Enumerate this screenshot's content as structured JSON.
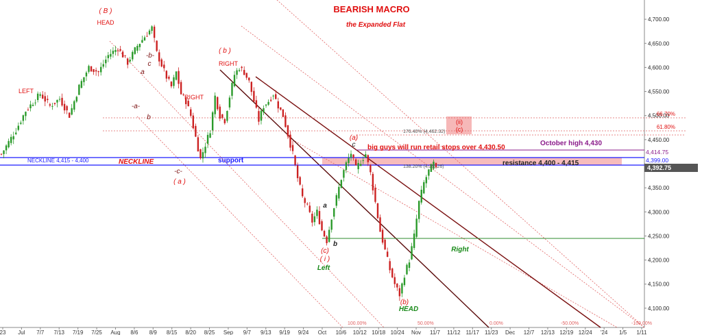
{
  "chart_data": {
    "type": "candlestick",
    "title": "BEARISH MACRO",
    "subtitle": "the Expanded Flat",
    "x_ticks": [
      "23",
      "Jul",
      "7/7",
      "7/13",
      "7/19",
      "7/25",
      "Aug",
      "8/6",
      "8/9",
      "8/15",
      "8/20",
      "8/25",
      "Sep",
      "9/7",
      "9/13",
      "9/19",
      "9/24",
      "Oct",
      "10/6",
      "10/12",
      "10/18",
      "10/24",
      "Nov",
      "11/7",
      "11/12",
      "11/17",
      "11/23",
      "Dec",
      "12/7",
      "12/13",
      "12/19",
      "12/24",
      "'24",
      "1/5",
      "1/11"
    ],
    "y_ticks": [
      "4,100.00",
      "4,150.00",
      "4,200.00",
      "4,250.00",
      "4,300.00",
      "4,350.00",
      "4,400.00",
      "4,450.00",
      "4,500.00",
      "4,550.00",
      "4,600.00",
      "4,650.00",
      "4,700.00"
    ],
    "ylim": [
      4060,
      4740
    ],
    "last_price": "4,392.75",
    "price_path": [
      [
        0,
        4420
      ],
      [
        6,
        4470
      ],
      [
        10,
        4510
      ],
      [
        16,
        4545
      ],
      [
        20,
        4520
      ],
      [
        24,
        4535
      ],
      [
        28,
        4500
      ],
      [
        32,
        4560
      ],
      [
        36,
        4600
      ],
      [
        40,
        4590
      ],
      [
        44,
        4625
      ],
      [
        48,
        4640
      ],
      [
        52,
        4610
      ],
      [
        56,
        4645
      ],
      [
        60,
        4670
      ],
      [
        62,
        4682
      ],
      [
        64,
        4630
      ],
      [
        66,
        4605
      ],
      [
        68,
        4580
      ],
      [
        70,
        4560
      ],
      [
        72,
        4590
      ],
      [
        74,
        4545
      ],
      [
        76,
        4530
      ],
      [
        78,
        4500
      ],
      [
        80,
        4455
      ],
      [
        82,
        4410
      ],
      [
        84,
        4440
      ],
      [
        86,
        4470
      ],
      [
        88,
        4540
      ],
      [
        90,
        4500
      ],
      [
        92,
        4490
      ],
      [
        94,
        4540
      ],
      [
        96,
        4585
      ],
      [
        98,
        4600
      ],
      [
        100,
        4590
      ],
      [
        102,
        4570
      ],
      [
        104,
        4530
      ],
      [
        106,
        4490
      ],
      [
        108,
        4520
      ],
      [
        110,
        4530
      ],
      [
        112,
        4545
      ],
      [
        114,
        4520
      ],
      [
        116,
        4500
      ],
      [
        118,
        4460
      ],
      [
        120,
        4420
      ],
      [
        122,
        4370
      ],
      [
        124,
        4330
      ],
      [
        126,
        4310
      ],
      [
        128,
        4280
      ],
      [
        130,
        4300
      ],
      [
        132,
        4262
      ],
      [
        134,
        4240
      ],
      [
        136,
        4290
      ],
      [
        138,
        4330
      ],
      [
        140,
        4370
      ],
      [
        142,
        4400
      ],
      [
        144,
        4422
      ],
      [
        146,
        4390
      ],
      [
        148,
        4405
      ],
      [
        150,
        4420
      ],
      [
        152,
        4380
      ],
      [
        154,
        4320
      ],
      [
        156,
        4260
      ],
      [
        158,
        4220
      ],
      [
        160,
        4180
      ],
      [
        162,
        4150
      ],
      [
        164,
        4128
      ],
      [
        166,
        4170
      ],
      [
        168,
        4200
      ],
      [
        170,
        4250
      ],
      [
        172,
        4320
      ],
      [
        174,
        4360
      ],
      [
        176,
        4385
      ],
      [
        178,
        4400
      ],
      [
        179,
        4392.75
      ]
    ],
    "levels": {
      "neckline_top": 4415,
      "neckline_bottom": 4400,
      "october_high": 4430,
      "resistance_top": 4415,
      "resistance_bottom": 4400,
      "right_shoulder_line": 4244,
      "fib_6180": 4465,
      "fib_6670": 4495,
      "fib_17640": 4462.32
    },
    "price_labels": [
      "4,414.75",
      "4,399.00",
      "4,392.75"
    ],
    "annotations": {
      "wave_B": "( B )",
      "head_top": "HEAD",
      "left_1": "LEFT",
      "right_1": "RIGHT",
      "wave_b_paren": "( b )",
      "right_2": "RIGHT",
      "minus_b": "-b-",
      "c_small": "c",
      "a_small": "a",
      "minus_a": "-a-",
      "b_small": "b",
      "minus_c": "-c-",
      "wave_a_paren": "( a )",
      "neckline_label": "NECKLINE 4,415 - 4,400",
      "neckline": "NECKLINE",
      "support": "support",
      "wave_a_small": "(a)",
      "c_top": "c",
      "big_guys": "big guys will run retail stops over 4,430.50",
      "october_high": "October high 4,430",
      "resistance": "resistance 4,400 - 4,415",
      "fib_6670": "66.70%",
      "fib_6180": "61.80%",
      "fib_17640": "176.40% (4,462.32)",
      "fib_13820": "138.20% (4,39..26)",
      "wave_ii": "(ii)",
      "wave_c_box": "(c)",
      "a_mid": "a",
      "b_mid": "b",
      "wave_c_low": "(c)",
      "wave_i_low": "( i )",
      "left_bottom": "Left",
      "right_bottom": "Right",
      "wave_b_low": "(b)",
      "head_bottom": "HEAD",
      "ch_100": "100.00%",
      "ch_50": "50.00%",
      "ch_0": "0.00%",
      "ch_m50": "-50.00%",
      "ch_m100": "-100.00%"
    },
    "colors": {
      "neckline": "#1a1aff",
      "october_high": "#8a1a8a",
      "channel": "#7a1010",
      "channel_dotted": "#e06060",
      "resistance_zone": "#f4a6a6",
      "right_line": "#2e8b2e",
      "candle_up": "#2a9a2a",
      "candle_down": "#cc2222",
      "label_red": "#e01010",
      "label_green": "#1a8a1a",
      "last_price_bg": "#555555"
    }
  }
}
